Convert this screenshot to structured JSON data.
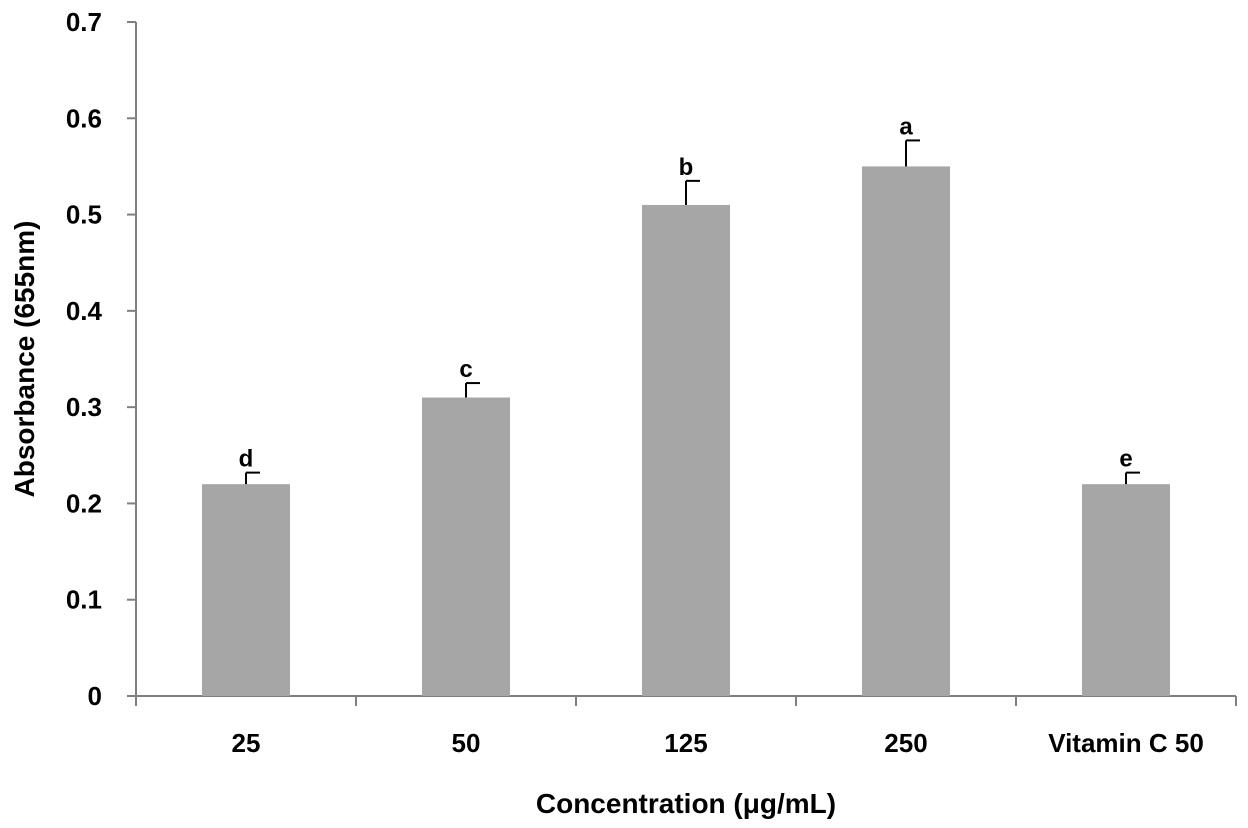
{
  "chart_data": {
    "type": "bar",
    "title": "",
    "xlabel": "Concentration (μg/mL)",
    "ylabel": "Absorbance (655nm)",
    "ylim": [
      0,
      0.7
    ],
    "yticks": [
      "0",
      "0.1",
      "0.2",
      "0.3",
      "0.4",
      "0.5",
      "0.6",
      "0.7"
    ],
    "categories": [
      "25",
      "50",
      "125",
      "250",
      "Vitamin C 50"
    ],
    "values": [
      0.22,
      0.31,
      0.51,
      0.55,
      0.22
    ],
    "errors": [
      0.012,
      0.015,
      0.025,
      0.027,
      0.012
    ],
    "significance_labels": [
      "d",
      "c",
      "b",
      "a",
      "e"
    ],
    "grid": false,
    "legend": "none",
    "bar_color": "#a6a6a6",
    "axis_color": "#808080",
    "error_bar_color": "#000000"
  }
}
